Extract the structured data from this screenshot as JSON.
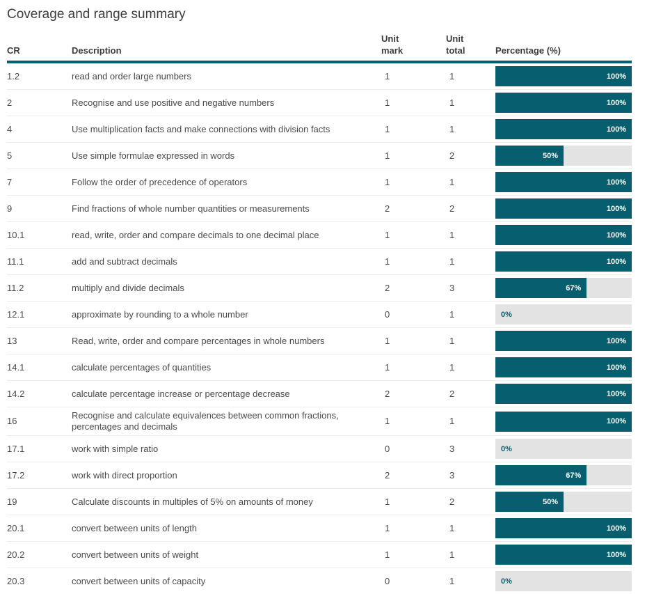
{
  "page": {
    "title": "Coverage and range summary"
  },
  "colors": {
    "bar_fill": "#065e6e",
    "bar_track": "#e3e3e3",
    "header_rule": "#065e6e"
  },
  "table": {
    "headers": {
      "cr": "CR",
      "description": "Description",
      "unit_mark": "Unit mark",
      "unit_total": "Unit total",
      "percentage": "Percentage (%)"
    },
    "rows": [
      {
        "cr": "1.2",
        "description": "read and order large numbers",
        "unit_mark": "1",
        "unit_total": "1",
        "percentage": 100,
        "percentage_label": "100%"
      },
      {
        "cr": "2",
        "description": "Recognise and use positive and negative numbers",
        "unit_mark": "1",
        "unit_total": "1",
        "percentage": 100,
        "percentage_label": "100%"
      },
      {
        "cr": "4",
        "description": "Use multiplication facts and make connections with division facts",
        "unit_mark": "1",
        "unit_total": "1",
        "percentage": 100,
        "percentage_label": "100%"
      },
      {
        "cr": "5",
        "description": "Use simple formulae expressed in words",
        "unit_mark": "1",
        "unit_total": "2",
        "percentage": 50,
        "percentage_label": "50%"
      },
      {
        "cr": "7",
        "description": "Follow the order of precedence of operators",
        "unit_mark": "1",
        "unit_total": "1",
        "percentage": 100,
        "percentage_label": "100%"
      },
      {
        "cr": "9",
        "description": "Find fractions of whole number quantities or measurements",
        "unit_mark": "2",
        "unit_total": "2",
        "percentage": 100,
        "percentage_label": "100%"
      },
      {
        "cr": "10.1",
        "description": "read, write, order and compare decimals to one decimal place",
        "unit_mark": "1",
        "unit_total": "1",
        "percentage": 100,
        "percentage_label": "100%"
      },
      {
        "cr": "11.1",
        "description": "add and subtract decimals",
        "unit_mark": "1",
        "unit_total": "1",
        "percentage": 100,
        "percentage_label": "100%"
      },
      {
        "cr": "11.2",
        "description": "multiply and divide decimals",
        "unit_mark": "2",
        "unit_total": "3",
        "percentage": 67,
        "percentage_label": "67%"
      },
      {
        "cr": "12.1",
        "description": "approximate by rounding to a whole number",
        "unit_mark": "0",
        "unit_total": "1",
        "percentage": 0,
        "percentage_label": "0%"
      },
      {
        "cr": "13",
        "description": "Read, write, order and compare percentages in whole numbers",
        "unit_mark": "1",
        "unit_total": "1",
        "percentage": 100,
        "percentage_label": "100%"
      },
      {
        "cr": "14.1",
        "description": "calculate percentages of quantities",
        "unit_mark": "1",
        "unit_total": "1",
        "percentage": 100,
        "percentage_label": "100%"
      },
      {
        "cr": "14.2",
        "description": "calculate percentage increase or percentage decrease",
        "unit_mark": "2",
        "unit_total": "2",
        "percentage": 100,
        "percentage_label": "100%"
      },
      {
        "cr": "16",
        "description": "Recognise and calculate equivalences between common fractions, percentages and decimals",
        "unit_mark": "1",
        "unit_total": "1",
        "percentage": 100,
        "percentage_label": "100%"
      },
      {
        "cr": "17.1",
        "description": "work with simple ratio",
        "unit_mark": "0",
        "unit_total": "3",
        "percentage": 0,
        "percentage_label": "0%"
      },
      {
        "cr": "17.2",
        "description": "work with direct proportion",
        "unit_mark": "2",
        "unit_total": "3",
        "percentage": 67,
        "percentage_label": "67%"
      },
      {
        "cr": "19",
        "description": "Calculate discounts in multiples of 5% on amounts of money",
        "unit_mark": "1",
        "unit_total": "2",
        "percentage": 50,
        "percentage_label": "50%"
      },
      {
        "cr": "20.1",
        "description": "convert between units of length",
        "unit_mark": "1",
        "unit_total": "1",
        "percentage": 100,
        "percentage_label": "100%"
      },
      {
        "cr": "20.2",
        "description": "convert between units of weight",
        "unit_mark": "1",
        "unit_total": "1",
        "percentage": 100,
        "percentage_label": "100%"
      },
      {
        "cr": "20.3",
        "description": "convert between units of capacity",
        "unit_mark": "0",
        "unit_total": "1",
        "percentage": 0,
        "percentage_label": "0%"
      }
    ]
  }
}
